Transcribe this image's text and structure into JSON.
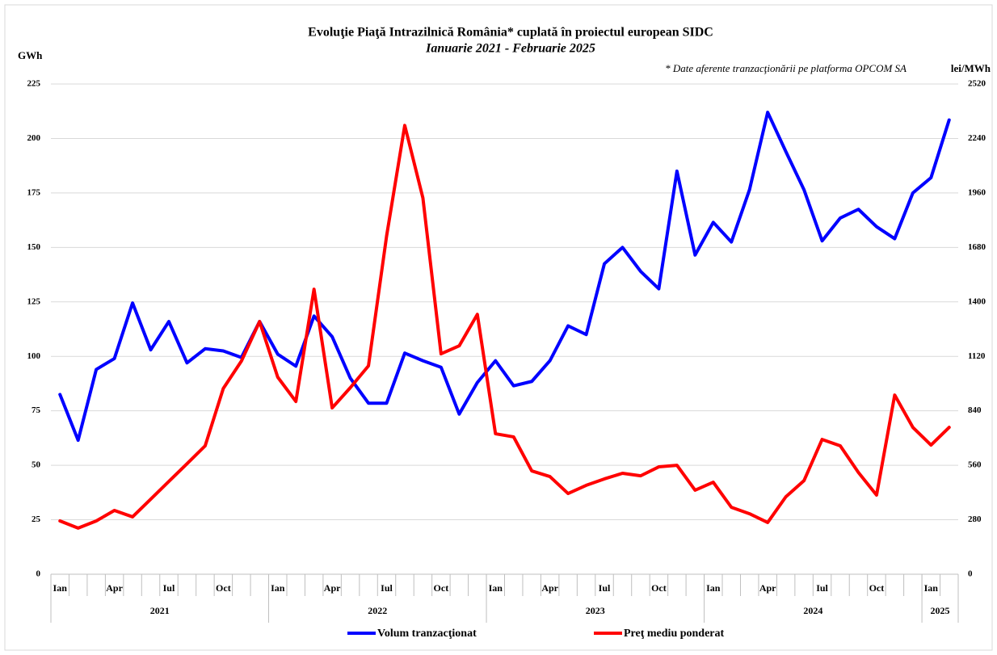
{
  "chart_data": {
    "type": "line",
    "title": "Evoluţie Piaţă Intrazilnică România* cuplată în proiectul  european SIDC",
    "subtitle": "Ianuarie 2021 - Februarie 2025",
    "annotation": "* Date aferente tranzacţionării pe platforma OPCOM SA",
    "y_label": "GWh",
    "y2_label": "lei/MWh",
    "categories": [
      "Ian",
      null,
      null,
      "Apr",
      null,
      null,
      "Iul",
      null,
      null,
      "Oct",
      null,
      null,
      "Ian",
      null,
      null,
      "Apr",
      null,
      null,
      "Iul",
      null,
      null,
      "Oct",
      null,
      null,
      "Ian",
      null,
      null,
      "Apr",
      null,
      null,
      "Iul",
      null,
      null,
      "Oct",
      null,
      null,
      "Ian",
      null,
      null,
      "Apr",
      null,
      null,
      "Iul",
      null,
      null,
      "Oct",
      null,
      null,
      "Ian",
      null
    ],
    "years": [
      "2021",
      "2022",
      "2023",
      "2024",
      "2025"
    ],
    "series": [
      {
        "name": "Volum tranzacţionat",
        "color": "#0000ff",
        "axis": "y",
        "values": [
          82.5,
          61.5,
          94,
          99,
          124.5,
          103,
          116,
          97,
          103.5,
          102.5,
          99.5,
          116,
          101,
          95.5,
          118.5,
          109,
          90,
          78.5,
          78.5,
          101.5,
          98,
          95,
          73.5,
          88,
          98,
          86.5,
          88.5,
          98,
          114,
          110,
          142.5,
          150,
          139,
          131,
          185,
          146.5,
          161.5,
          152.5,
          176.5,
          212,
          194,
          176.5,
          153,
          163.5,
          167.5,
          159.5,
          154,
          175,
          182,
          208.5
        ]
      },
      {
        "name": "Preţ mediu ponderat",
        "color": "#ff0000",
        "axis": "y2",
        "values": [
          274,
          237,
          274,
          328,
          295,
          386,
          477,
          568,
          660,
          955,
          1096,
          1299,
          1013,
          888,
          1465,
          855,
          959,
          1071,
          1739,
          2307,
          1934,
          1133,
          1174,
          1336,
          722,
          706,
          531,
          502,
          415,
          457,
          490,
          519,
          506,
          552,
          560,
          432,
          473,
          344,
          311,
          266,
          398,
          481,
          693,
          660,
          523,
          407,
          921,
          755,
          664,
          755
        ]
      }
    ],
    "ylim": [
      0,
      225
    ],
    "yticks": [
      0,
      25,
      50,
      75,
      100,
      125,
      150,
      175,
      200,
      225
    ],
    "y2lim": [
      0,
      2520
    ],
    "y2ticks": [
      0,
      280,
      560,
      840,
      1120,
      1400,
      1680,
      1960,
      2240,
      2520
    ],
    "grid": true,
    "legend": "bottom"
  }
}
